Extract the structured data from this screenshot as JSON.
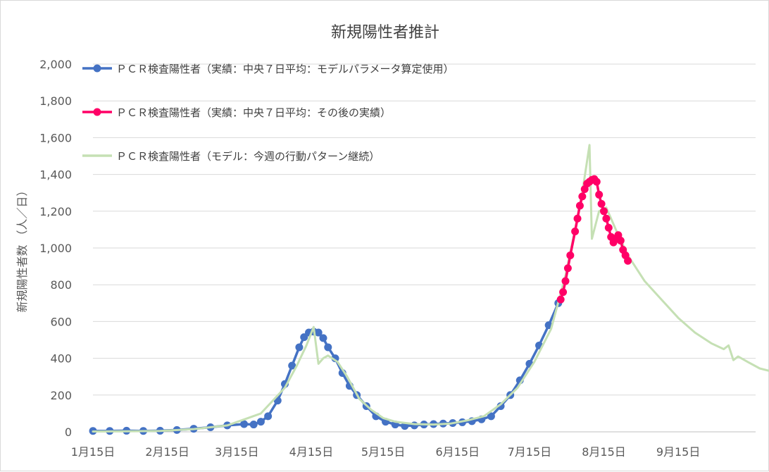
{
  "chart_data": {
    "type": "line",
    "title": "新規陽性者推計",
    "ylabel": "新規陽性者数 （人／日）",
    "xlabel": "",
    "ylim": [
      0,
      2000
    ],
    "yticks": [
      0,
      200,
      400,
      600,
      800,
      1000,
      1200,
      1400,
      1600,
      1800,
      2000
    ],
    "ytick_labels": [
      "0",
      "200",
      "400",
      "600",
      "800",
      "1,000",
      "1,200",
      "1,400",
      "1,600",
      "1,800",
      "2,000"
    ],
    "xlim": [
      "01-15",
      "10-25"
    ],
    "xtick_labels": [
      "1月15日",
      "2月15日",
      "3月15日",
      "4月15日",
      "5月15日",
      "6月15日",
      "7月15日",
      "8月15日",
      "9月15日"
    ],
    "xticks": [
      "01-15",
      "02-15",
      "03-15",
      "04-15",
      "05-15",
      "06-15",
      "07-15",
      "08-15",
      "09-15"
    ],
    "grid": true,
    "legend_position": "top-left",
    "series": [
      {
        "name": "ＰＣＲ検査陽性者（実績：中央７日平均：モデルパラメータ算定使用）",
        "color": "#4472c4",
        "marker": "circle",
        "points": [
          [
            "01-15",
            5
          ],
          [
            "01-22",
            5
          ],
          [
            "01-29",
            6
          ],
          [
            "02-05",
            5
          ],
          [
            "02-12",
            6
          ],
          [
            "02-19",
            10
          ],
          [
            "02-26",
            17
          ],
          [
            "03-04",
            25
          ],
          [
            "03-11",
            35
          ],
          [
            "03-18",
            42
          ],
          [
            "03-22",
            40
          ],
          [
            "03-25",
            55
          ],
          [
            "03-28",
            85
          ],
          [
            "04-01",
            170
          ],
          [
            "04-04",
            260
          ],
          [
            "04-07",
            360
          ],
          [
            "04-10",
            460
          ],
          [
            "04-12",
            515
          ],
          [
            "04-14",
            540
          ],
          [
            "04-16",
            545
          ],
          [
            "04-18",
            540
          ],
          [
            "04-20",
            510
          ],
          [
            "04-22",
            460
          ],
          [
            "04-25",
            400
          ],
          [
            "04-28",
            320
          ],
          [
            "05-01",
            250
          ],
          [
            "05-04",
            200
          ],
          [
            "05-08",
            140
          ],
          [
            "05-12",
            85
          ],
          [
            "05-16",
            55
          ],
          [
            "05-20",
            40
          ],
          [
            "05-24",
            32
          ],
          [
            "05-28",
            35
          ],
          [
            "06-01",
            40
          ],
          [
            "06-05",
            42
          ],
          [
            "06-09",
            45
          ],
          [
            "06-13",
            48
          ],
          [
            "06-17",
            52
          ],
          [
            "06-21",
            58
          ],
          [
            "06-25",
            68
          ],
          [
            "06-29",
            85
          ],
          [
            "07-03",
            140
          ],
          [
            "07-07",
            200
          ],
          [
            "07-11",
            280
          ],
          [
            "07-15",
            370
          ],
          [
            "07-19",
            470
          ],
          [
            "07-23",
            580
          ],
          [
            "07-27",
            700
          ]
        ]
      },
      {
        "name": "ＰＣＲ検査陽性者（実績：中央７日平均：その後の実績）",
        "color": "#ff0066",
        "marker": "circle",
        "points": [
          [
            "07-28",
            720
          ],
          [
            "07-29",
            760
          ],
          [
            "07-30",
            820
          ],
          [
            "07-31",
            890
          ],
          [
            "08-01",
            960
          ],
          [
            "08-03",
            1090
          ],
          [
            "08-04",
            1160
          ],
          [
            "08-05",
            1230
          ],
          [
            "08-06",
            1280
          ],
          [
            "08-07",
            1320
          ],
          [
            "08-08",
            1350
          ],
          [
            "08-09",
            1360
          ],
          [
            "08-10",
            1370
          ],
          [
            "08-11",
            1375
          ],
          [
            "08-12",
            1360
          ],
          [
            "08-13",
            1290
          ],
          [
            "08-14",
            1240
          ],
          [
            "08-15",
            1200
          ],
          [
            "08-16",
            1160
          ],
          [
            "08-17",
            1110
          ],
          [
            "08-18",
            1060
          ],
          [
            "08-19",
            1030
          ],
          [
            "08-20",
            1050
          ],
          [
            "08-21",
            1070
          ],
          [
            "08-22",
            1040
          ],
          [
            "08-23",
            990
          ],
          [
            "08-24",
            960
          ],
          [
            "08-25",
            930
          ]
        ]
      },
      {
        "name": "ＰＣＲ検査陽性者（モデル：今週の行動パターン継続）",
        "color": "#c5e0b4",
        "marker": "none",
        "points": [
          [
            "01-15",
            2
          ],
          [
            "01-29",
            3
          ],
          [
            "02-12",
            5
          ],
          [
            "02-26",
            15
          ],
          [
            "03-11",
            35
          ],
          [
            "03-25",
            100
          ],
          [
            "04-04",
            240
          ],
          [
            "04-09",
            360
          ],
          [
            "04-13",
            470
          ],
          [
            "04-16",
            570
          ],
          [
            "04-18",
            370
          ],
          [
            "04-20",
            400
          ],
          [
            "04-22",
            415
          ],
          [
            "04-26",
            380
          ],
          [
            "04-30",
            300
          ],
          [
            "05-05",
            180
          ],
          [
            "05-10",
            120
          ],
          [
            "05-15",
            75
          ],
          [
            "05-20",
            55
          ],
          [
            "05-28",
            42
          ],
          [
            "06-05",
            40
          ],
          [
            "06-12",
            45
          ],
          [
            "06-19",
            62
          ],
          [
            "06-26",
            85
          ],
          [
            "07-03",
            150
          ],
          [
            "07-10",
            240
          ],
          [
            "07-17",
            380
          ],
          [
            "07-24",
            560
          ],
          [
            "07-30",
            850
          ],
          [
            "08-03",
            1100
          ],
          [
            "08-06",
            1300
          ],
          [
            "08-09",
            1560
          ],
          [
            "08-10",
            1050
          ],
          [
            "08-13",
            1200
          ],
          [
            "08-16",
            1220
          ],
          [
            "08-20",
            1100
          ],
          [
            "08-25",
            960
          ],
          [
            "08-28",
            900
          ],
          [
            "09-01",
            820
          ],
          [
            "09-08",
            720
          ],
          [
            "09-15",
            620
          ],
          [
            "09-22",
            540
          ],
          [
            "09-29",
            480
          ],
          [
            "10-04",
            450
          ],
          [
            "10-06",
            470
          ],
          [
            "10-08",
            390
          ],
          [
            "10-10",
            410
          ],
          [
            "10-14",
            380
          ],
          [
            "10-19",
            345
          ],
          [
            "10-25",
            325
          ]
        ]
      }
    ]
  }
}
